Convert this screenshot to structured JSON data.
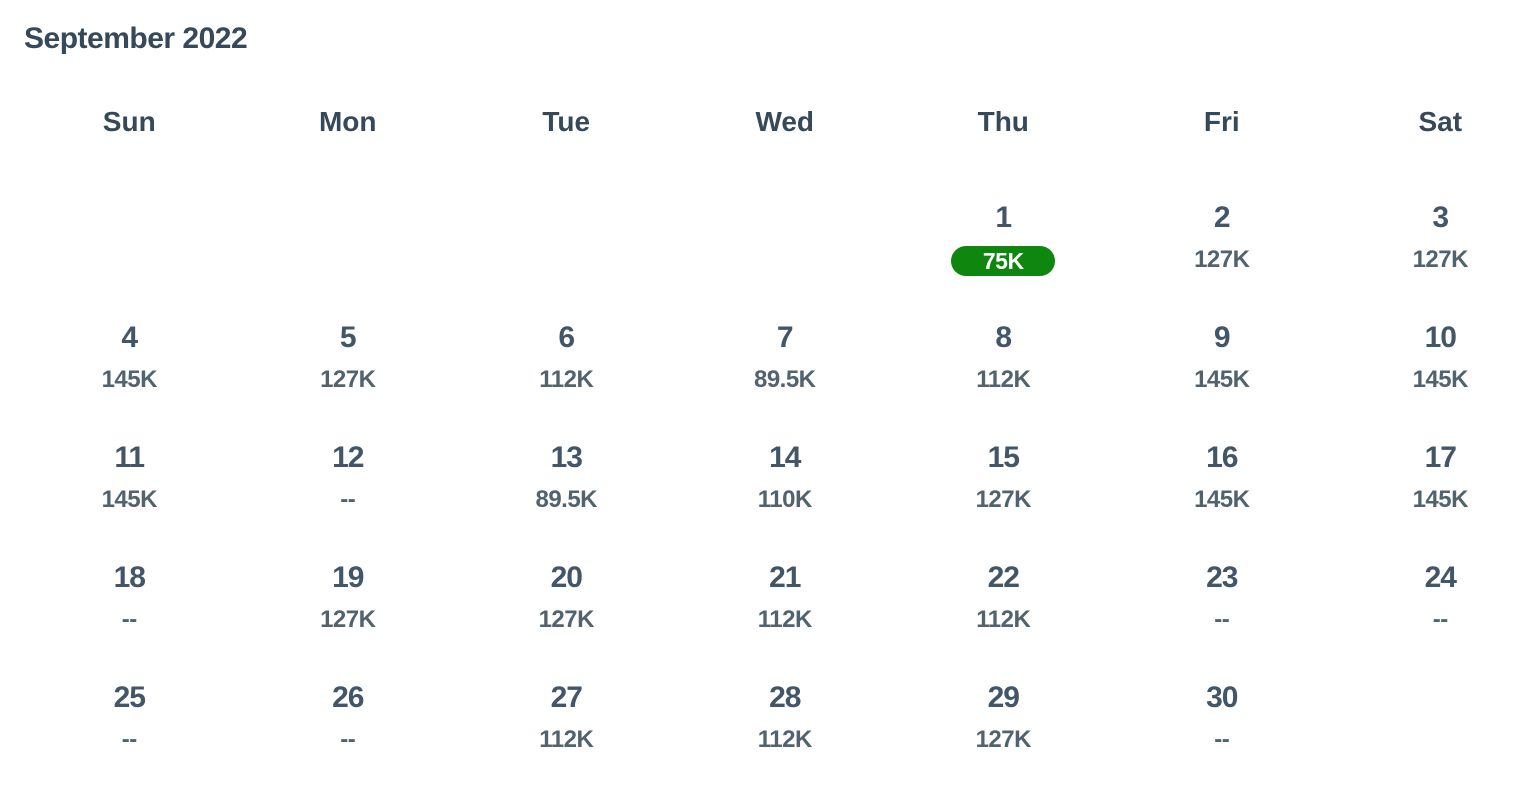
{
  "page": {
    "title": "September 2022"
  },
  "colors": {
    "heading": "#36495a",
    "date": "#42566a",
    "price": "#51636f",
    "pill_bg": "#0f870f",
    "pill_text": "#ffffff"
  },
  "calendar": {
    "weekday_headers": [
      "Sun",
      "Mon",
      "Tue",
      "Wed",
      "Thu",
      "Fri",
      "Sat"
    ],
    "weeks": [
      [
        {
          "day": "",
          "price": ""
        },
        {
          "day": "",
          "price": ""
        },
        {
          "day": "",
          "price": ""
        },
        {
          "day": "",
          "price": ""
        },
        {
          "day": "1",
          "price": "75K",
          "highlight": true
        },
        {
          "day": "2",
          "price": "127K"
        },
        {
          "day": "3",
          "price": "127K"
        }
      ],
      [
        {
          "day": "4",
          "price": "145K"
        },
        {
          "day": "5",
          "price": "127K"
        },
        {
          "day": "6",
          "price": "112K"
        },
        {
          "day": "7",
          "price": "89.5K"
        },
        {
          "day": "8",
          "price": "112K"
        },
        {
          "day": "9",
          "price": "145K"
        },
        {
          "day": "10",
          "price": "145K"
        }
      ],
      [
        {
          "day": "11",
          "price": "145K"
        },
        {
          "day": "12",
          "price": "--"
        },
        {
          "day": "13",
          "price": "89.5K"
        },
        {
          "day": "14",
          "price": "110K"
        },
        {
          "day": "15",
          "price": "127K"
        },
        {
          "day": "16",
          "price": "145K"
        },
        {
          "day": "17",
          "price": "145K"
        }
      ],
      [
        {
          "day": "18",
          "price": "--"
        },
        {
          "day": "19",
          "price": "127K"
        },
        {
          "day": "20",
          "price": "127K"
        },
        {
          "day": "21",
          "price": "112K"
        },
        {
          "day": "22",
          "price": "112K"
        },
        {
          "day": "23",
          "price": "--"
        },
        {
          "day": "24",
          "price": "--"
        }
      ],
      [
        {
          "day": "25",
          "price": "--"
        },
        {
          "day": "26",
          "price": "--"
        },
        {
          "day": "27",
          "price": "112K"
        },
        {
          "day": "28",
          "price": "112K"
        },
        {
          "day": "29",
          "price": "127K"
        },
        {
          "day": "30",
          "price": "--"
        },
        {
          "day": "",
          "price": ""
        }
      ]
    ]
  }
}
